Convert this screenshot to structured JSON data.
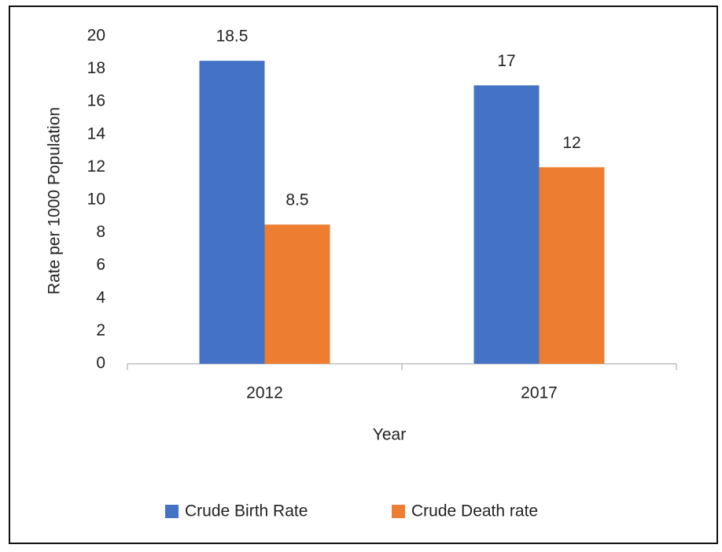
{
  "chart_data": {
    "type": "bar",
    "categories": [
      "2012",
      "2017"
    ],
    "series": [
      {
        "name": "Crude Birth Rate",
        "color": "#4472c4",
        "values": [
          18.5,
          17
        ]
      },
      {
        "name": "Crude Death rate",
        "color": "#ed7d31",
        "values": [
          8.5,
          12
        ]
      }
    ],
    "xlabel": "Year",
    "ylabel": "Rate per 1000 Population",
    "ylim": [
      0,
      20
    ],
    "yticks": [
      0,
      2,
      4,
      6,
      8,
      10,
      12,
      14,
      16,
      18,
      20
    ],
    "grid": false,
    "legend": "bottom"
  }
}
